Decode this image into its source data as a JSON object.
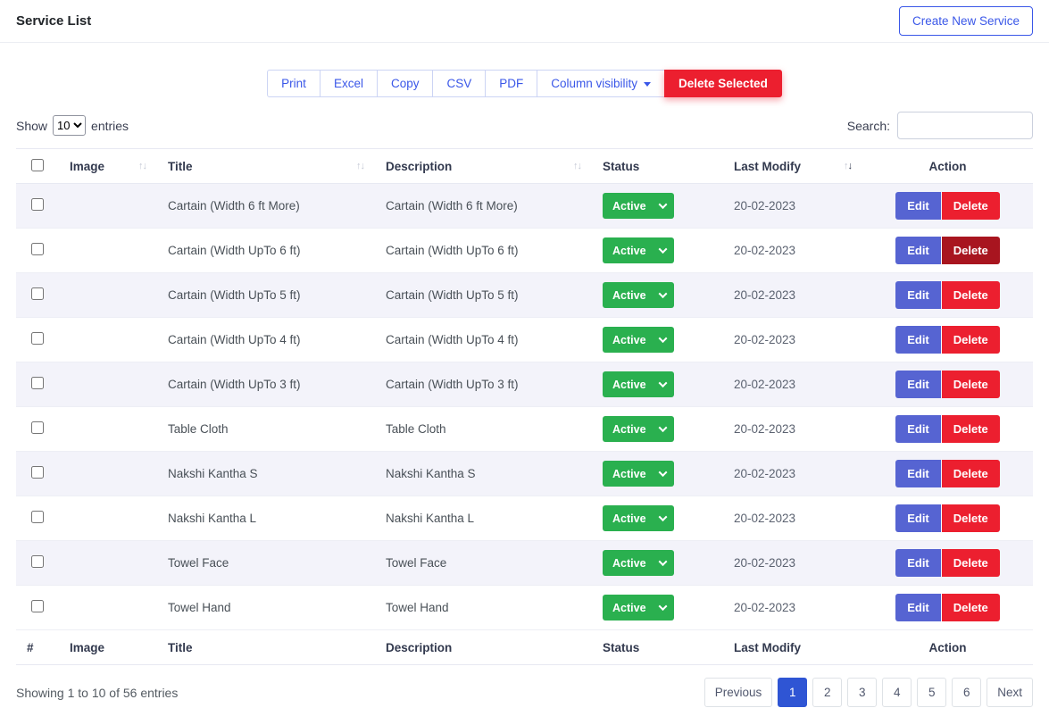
{
  "header": {
    "title": "Service List",
    "create_button": "Create New Service"
  },
  "toolbar": {
    "buttons": [
      "Print",
      "Excel",
      "Copy",
      "CSV",
      "PDF"
    ],
    "column_visibility": "Column visibility",
    "delete_selected": "Delete Selected"
  },
  "controls": {
    "show_label": "Show",
    "page_size": "10",
    "entries_label": "entries",
    "search_label": "Search:",
    "search_value": ""
  },
  "table": {
    "columns": [
      {
        "key": "check",
        "label": "",
        "sortable": false
      },
      {
        "key": "image",
        "label": "Image",
        "sortable": true
      },
      {
        "key": "title",
        "label": "Title",
        "sortable": true
      },
      {
        "key": "desc",
        "label": "Description",
        "sortable": true
      },
      {
        "key": "status",
        "label": "Status",
        "sortable": false
      },
      {
        "key": "modify",
        "label": "Last Modify",
        "sortable": true,
        "sorted": "desc"
      },
      {
        "key": "action",
        "label": "Action",
        "sortable": false,
        "align": "center"
      }
    ],
    "footer_labels": [
      "#",
      "Image",
      "Title",
      "Description",
      "Status",
      "Last Modify",
      "Action"
    ],
    "actions": {
      "edit": "Edit",
      "delete": "Delete"
    },
    "rows": [
      {
        "title": "Cartain (Width 6 ft More)",
        "description": "Cartain (Width 6 ft More)",
        "status": "Active",
        "last_modify": "20-02-2023"
      },
      {
        "title": "Cartain (Width UpTo 6 ft)",
        "description": "Cartain (Width UpTo 6 ft)",
        "status": "Active",
        "last_modify": "20-02-2023",
        "delete_dark": true
      },
      {
        "title": "Cartain (Width UpTo 5 ft)",
        "description": "Cartain (Width UpTo 5 ft)",
        "status": "Active",
        "last_modify": "20-02-2023"
      },
      {
        "title": "Cartain (Width UpTo 4 ft)",
        "description": "Cartain (Width UpTo 4 ft)",
        "status": "Active",
        "last_modify": "20-02-2023"
      },
      {
        "title": "Cartain (Width UpTo 3 ft)",
        "description": "Cartain (Width UpTo 3 ft)",
        "status": "Active",
        "last_modify": "20-02-2023"
      },
      {
        "title": "Table Cloth",
        "description": "Table Cloth",
        "status": "Active",
        "last_modify": "20-02-2023"
      },
      {
        "title": "Nakshi Kantha S",
        "description": "Nakshi Kantha S",
        "status": "Active",
        "last_modify": "20-02-2023"
      },
      {
        "title": "Nakshi Kantha L",
        "description": "Nakshi Kantha L",
        "status": "Active",
        "last_modify": "20-02-2023"
      },
      {
        "title": "Towel Face",
        "description": "Towel Face",
        "status": "Active",
        "last_modify": "20-02-2023"
      },
      {
        "title": "Towel Hand",
        "description": "Towel Hand",
        "status": "Active",
        "last_modify": "20-02-2023"
      }
    ]
  },
  "footer": {
    "showing_text": "Showing 1 to 10 of 56 entries",
    "pagination": {
      "previous": "Previous",
      "pages": [
        "1",
        "2",
        "3",
        "4",
        "5",
        "6"
      ],
      "active_page": "1",
      "next": "Next"
    }
  },
  "colors": {
    "accent_blue": "#3a57e8",
    "edit_indigo": "#5664d2",
    "delete_red": "#ec1f2f",
    "status_green": "#2ab04f",
    "active_page_blue": "#2f55d4",
    "row_stripe": "#f3f3fa"
  }
}
